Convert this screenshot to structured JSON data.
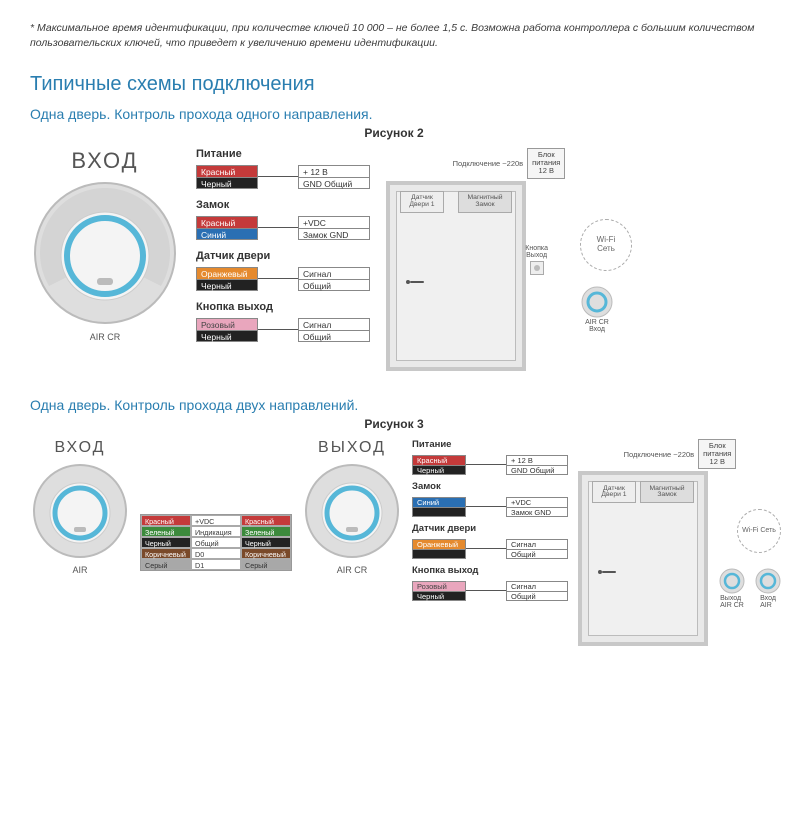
{
  "colors": {
    "heading": "#2a7eb0",
    "text": "#3a3a3a",
    "red": "#c43a3a",
    "black": "#222222",
    "blue": "#2a6fb3",
    "orange": "#e58a2e",
    "pink": "#e9a6bd",
    "green": "#3c8a3c",
    "brown": "#7a4a2a",
    "grey": "#a8a8a8",
    "readerBody": "#dedede",
    "readerRing": "#56b7d8",
    "readerInner": "#f4f4f4"
  },
  "footnote": "* Максимальное время идентификации, при количестве ключей 10 000 – не более 1,5 с. Возможна работа контроллера с большим количеством пользовательских ключей, что приведет к увеличению времени идентификации.",
  "section_title": "Типичные схемы подключения",
  "fig2": {
    "subtitle": "Одна дверь. Контроль прохода одного направления.",
    "caption": "Рисунок 2",
    "reader_label": "ВХОД",
    "reader_sublabel": "AIR CR",
    "groups": [
      {
        "title": "Питание",
        "rows": [
          {
            "color_label": "Красный",
            "color": "red",
            "text": "+ 12 В"
          },
          {
            "color_label": "Черный",
            "color": "black",
            "text": "GND Общий"
          }
        ]
      },
      {
        "title": "Замок",
        "rows": [
          {
            "color_label": "Красный",
            "color": "red",
            "text": "+VDC"
          },
          {
            "color_label": "Синий",
            "color": "blue",
            "text": "Замок GND"
          }
        ]
      },
      {
        "title": "Датчик двери",
        "rows": [
          {
            "color_label": "Оранжевый",
            "color": "orange",
            "text": "Сигнал"
          },
          {
            "color_label": "Черный",
            "color": "black",
            "text": "Общий"
          }
        ]
      },
      {
        "title": "Кнопка выход",
        "rows": [
          {
            "color_label": "Розовый",
            "color": "pink",
            "text": "Сигнал"
          },
          {
            "color_label": "Черный",
            "color": "black",
            "text": "Общий"
          }
        ]
      }
    ],
    "door": {
      "conn_text": "Подключение ~220в",
      "psu": "Блок\nпитания\n12 В",
      "sensor": "Датчик\nДвери 1",
      "lock": "Магнитный\nЗамок",
      "exit_label": "Кнопка\nВыход",
      "wifi": "Wi-Fi\nСеть",
      "mini_readers": [
        {
          "top": "AIR CR",
          "bottom": "Вход"
        }
      ]
    }
  },
  "fig3": {
    "subtitle": "Одна дверь. Контроль прохода двух направлений.",
    "caption": "Рисунок 3",
    "reader_in_label": "ВХОД",
    "reader_out_label": "ВЫХОД",
    "reader_sublabel": "AIR CR",
    "reader_sublabel2": "AIR",
    "midtable": [
      [
        "Красный",
        "red",
        "+VDC",
        "Красный",
        "red"
      ],
      [
        "Зеленый",
        "green",
        "Индикация",
        "Зеленый",
        "green"
      ],
      [
        "Черный",
        "black",
        "Общий",
        "Черный",
        "black"
      ],
      [
        "Коричневый",
        "brown",
        "D0",
        "Коричневый",
        "brown"
      ],
      [
        "Серый",
        "grey",
        "D1",
        "Серый",
        "grey"
      ]
    ],
    "groups": [
      {
        "title": "Питание",
        "rows": [
          {
            "color_label": "Красный",
            "color": "red",
            "text": "+ 12 В"
          },
          {
            "color_label": "Черный",
            "color": "black",
            "text": "GND Общий"
          }
        ]
      },
      {
        "title": "Замок",
        "rows": [
          {
            "color_label": "Синий",
            "color": "blue",
            "text": "+VDC"
          },
          {
            "color_label": "",
            "color": "black",
            "text": "Замок GND"
          }
        ]
      },
      {
        "title": "Датчик двери",
        "rows": [
          {
            "color_label": "Оранжевый",
            "color": "orange",
            "text": "Сигнал"
          },
          {
            "color_label": "",
            "color": "black",
            "text": "Общий"
          }
        ]
      },
      {
        "title": "Кнопка выход",
        "rows": [
          {
            "color_label": "Розовый",
            "color": "pink",
            "text": "Сигнал"
          },
          {
            "color_label": "Черный",
            "color": "black",
            "text": "Общий"
          }
        ]
      }
    ],
    "door": {
      "conn_text": "Подключение ~220в",
      "psu": "Блок\nпитания\n12 В",
      "sensor": "Датчик\nДвери 1",
      "lock": "Магнитный\nЗамок",
      "wifi": "Wi-Fi\nСеть",
      "mini_readers": [
        {
          "top": "",
          "bottom": "Выход\nAIR CR"
        },
        {
          "top": "",
          "bottom": "Вход\nAIR"
        }
      ]
    }
  }
}
